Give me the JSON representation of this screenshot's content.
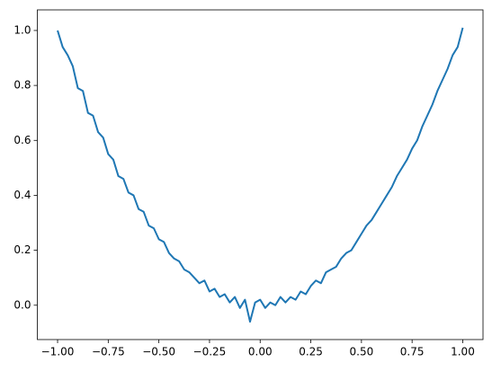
{
  "chart_data": {
    "type": "line",
    "color": "#1f77b4",
    "x": [
      -1,
      -0.975,
      -0.95,
      -0.925,
      -0.9,
      -0.875,
      -0.85,
      -0.825,
      -0.8,
      -0.775,
      -0.75,
      -0.725,
      -0.7,
      -0.675,
      -0.65,
      -0.625,
      -0.6,
      -0.575,
      -0.55,
      -0.525,
      -0.5,
      -0.475,
      -0.45,
      -0.425,
      -0.4,
      -0.375,
      -0.35,
      -0.325,
      -0.3,
      -0.275,
      -0.25,
      -0.225,
      -0.2,
      -0.175,
      -0.15,
      -0.125,
      -0.1,
      -0.075,
      -0.05,
      -0.025,
      0,
      0.025,
      0.05,
      0.075,
      0.1,
      0.125,
      0.15,
      0.175,
      0.2,
      0.225,
      0.25,
      0.275,
      0.3,
      0.325,
      0.35,
      0.375,
      0.4,
      0.425,
      0.45,
      0.475,
      0.5,
      0.525,
      0.55,
      0.575,
      0.6,
      0.625,
      0.65,
      0.675,
      0.7,
      0.725,
      0.75,
      0.775,
      0.8,
      0.825,
      0.85,
      0.875,
      0.9,
      0.925,
      0.95,
      0.975,
      1
    ],
    "values": [
      1.0,
      0.94,
      0.91,
      0.87,
      0.79,
      0.78,
      0.7,
      0.69,
      0.63,
      0.61,
      0.55,
      0.53,
      0.47,
      0.46,
      0.41,
      0.4,
      0.35,
      0.34,
      0.29,
      0.28,
      0.24,
      0.23,
      0.19,
      0.17,
      0.16,
      0.13,
      0.12,
      0.1,
      0.08,
      0.09,
      0.05,
      0.06,
      0.03,
      0.04,
      0.01,
      0.03,
      -0.01,
      0.02,
      -0.06,
      0.01,
      0.02,
      -0.01,
      0.01,
      0.0,
      0.03,
      0.01,
      0.03,
      0.02,
      0.05,
      0.04,
      0.07,
      0.09,
      0.08,
      0.12,
      0.13,
      0.14,
      0.17,
      0.19,
      0.2,
      0.23,
      0.26,
      0.29,
      0.31,
      0.34,
      0.37,
      0.4,
      0.43,
      0.47,
      0.5,
      0.53,
      0.57,
      0.6,
      0.65,
      0.69,
      0.73,
      0.78,
      0.82,
      0.86,
      0.91,
      0.94,
      1.01
    ],
    "xlim": [
      -1.1,
      1.1
    ],
    "xticks": [
      {
        "value": -1,
        "label": "−1.00"
      },
      {
        "value": -0.75,
        "label": "−0.75"
      },
      {
        "value": -0.5,
        "label": "−0.50"
      },
      {
        "value": -0.25,
        "label": "−0.25"
      },
      {
        "value": 0,
        "label": "0.00"
      },
      0.25,
      {
        "value": 0.5,
        "label": "0.50"
      },
      0.75,
      {
        "value": 1,
        "label": "1.00"
      }
    ],
    "ylim": [
      -0.125,
      1.075
    ],
    "yticks": [
      {
        "value": 0,
        "label": "0.0"
      },
      0.2,
      0.4,
      0.6,
      0.8,
      {
        "value": 1,
        "label": "1.0"
      }
    ]
  }
}
